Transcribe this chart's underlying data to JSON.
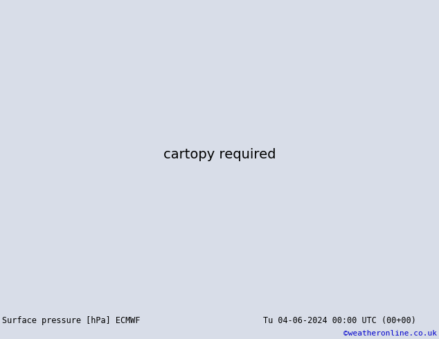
{
  "title_left": "Surface pressure [hPa] ECMWF",
  "title_right": "Tu 04-06-2024 00:00 UTC (00+00)",
  "credit": "©weatheronline.co.uk",
  "bg_color": "#d8dde8",
  "ocean_color": "#d8dde8",
  "land_color": "#c8e8a8",
  "land_border_color": "#909090",
  "fig_width": 6.34,
  "fig_height": 4.9,
  "dpi": 100,
  "footer_bg": "#d8d8d8",
  "footer_text_color": "#000000",
  "credit_color": "#0000cc",
  "extent": [
    95,
    185,
    -65,
    10
  ]
}
